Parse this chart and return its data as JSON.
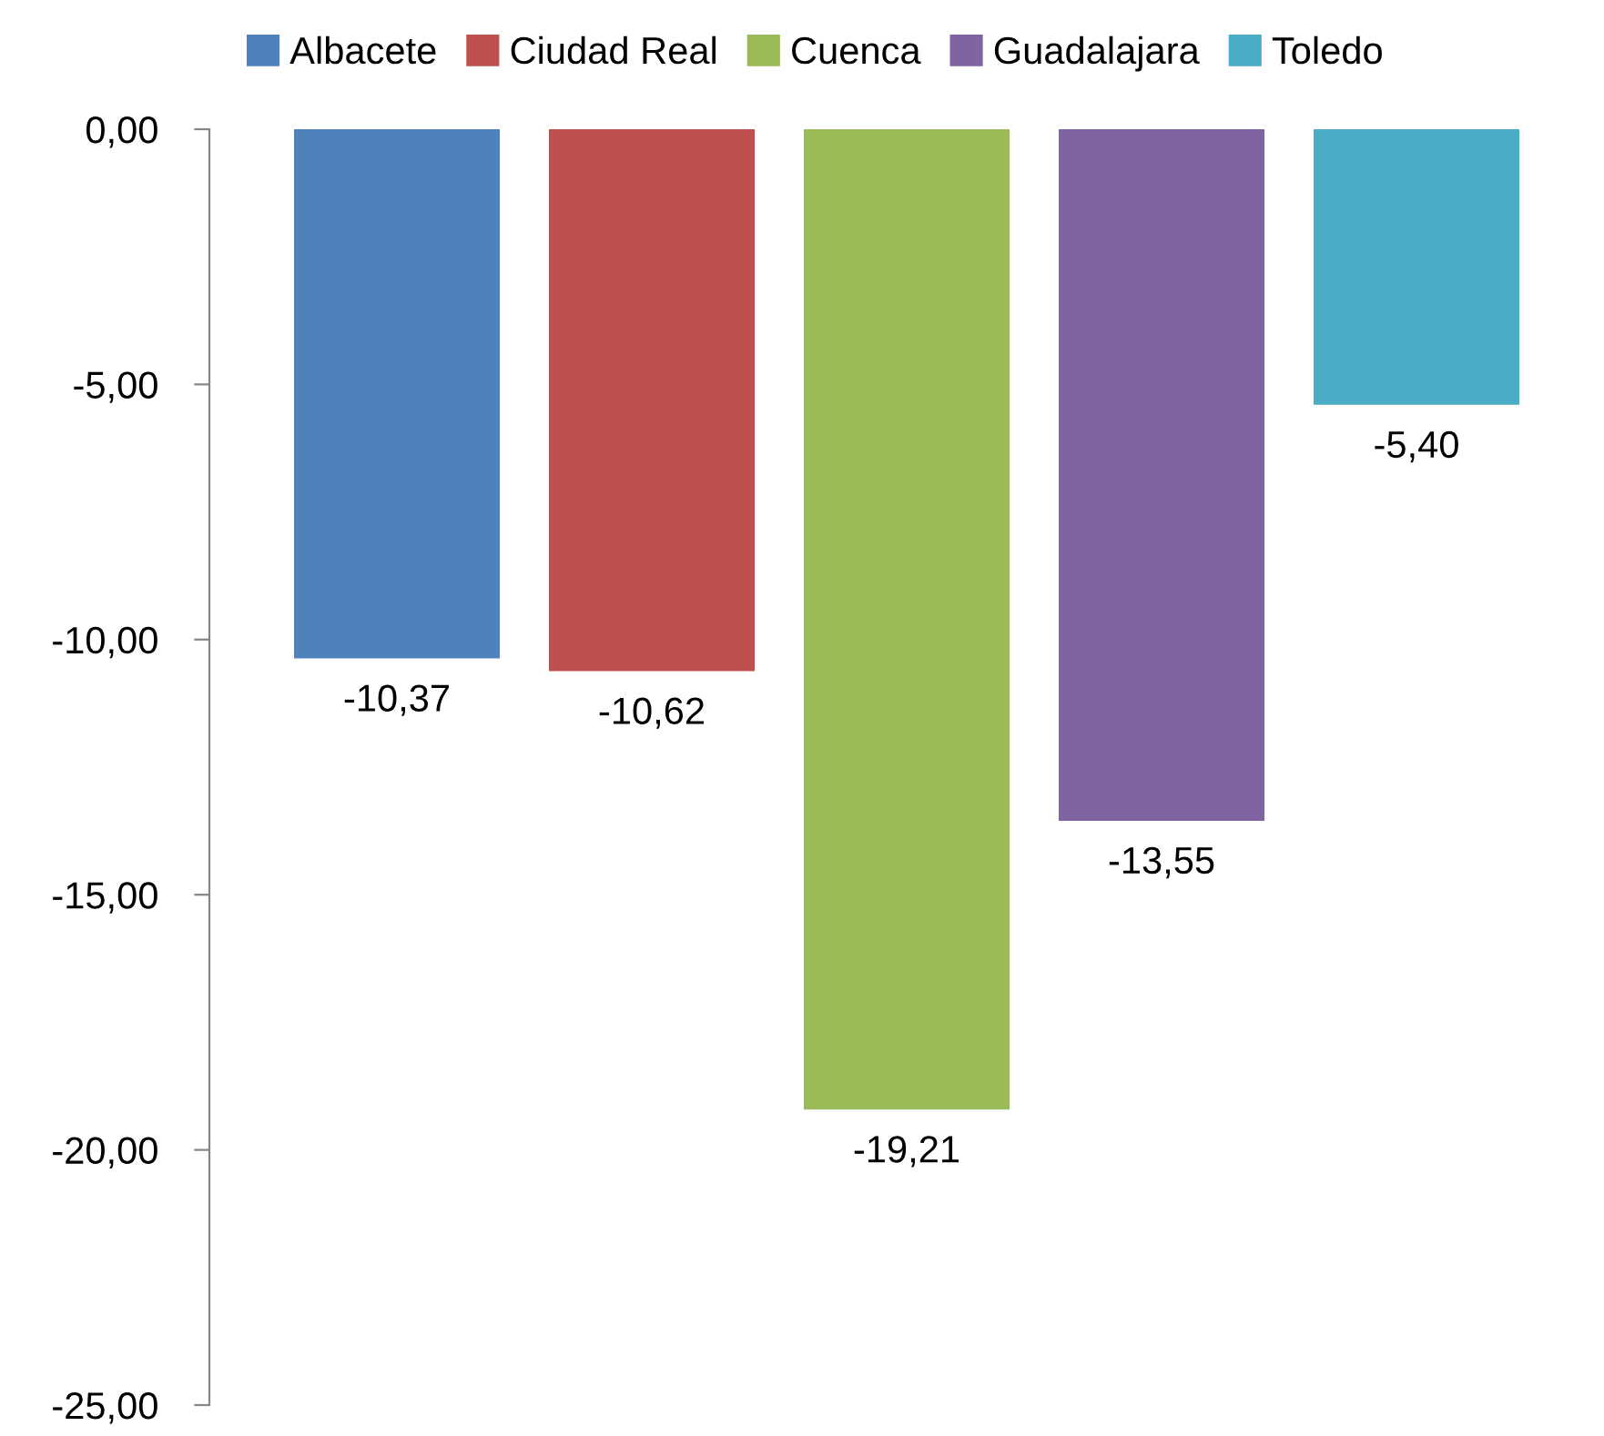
{
  "chart_data": {
    "type": "bar",
    "categories": [
      null
    ],
    "series": [
      {
        "name": "Albacete",
        "color": "#4f81bd",
        "values": [
          -10.37
        ],
        "value_labels": [
          "-10,37"
        ]
      },
      {
        "name": "Ciudad Real",
        "color": "#c0504d",
        "values": [
          -10.62
        ],
        "value_labels": [
          "-10,62"
        ]
      },
      {
        "name": "Cuenca",
        "color": "#9bbb59",
        "values": [
          -19.21
        ],
        "value_labels": [
          "-19,21"
        ]
      },
      {
        "name": "Guadalajara",
        "color": "#8064a2",
        "values": [
          -13.55
        ],
        "value_labels": [
          "-13,55"
        ]
      },
      {
        "name": "Toledo",
        "color": "#4bacc6",
        "values": [
          -5.4
        ],
        "value_labels": [
          "-5,40"
        ]
      }
    ],
    "ylim": [
      -25,
      0
    ],
    "yticks": [
      {
        "value": -25,
        "label": "-25,00"
      },
      {
        "value": -20,
        "label": "-20,00"
      },
      {
        "value": -15,
        "label": "-15,00"
      },
      {
        "value": -10,
        "label": "-10,00"
      },
      {
        "value": -5,
        "label": "-5,00"
      },
      {
        "value": 0,
        "label": "0,00"
      }
    ],
    "legend": "top",
    "grid": false
  }
}
